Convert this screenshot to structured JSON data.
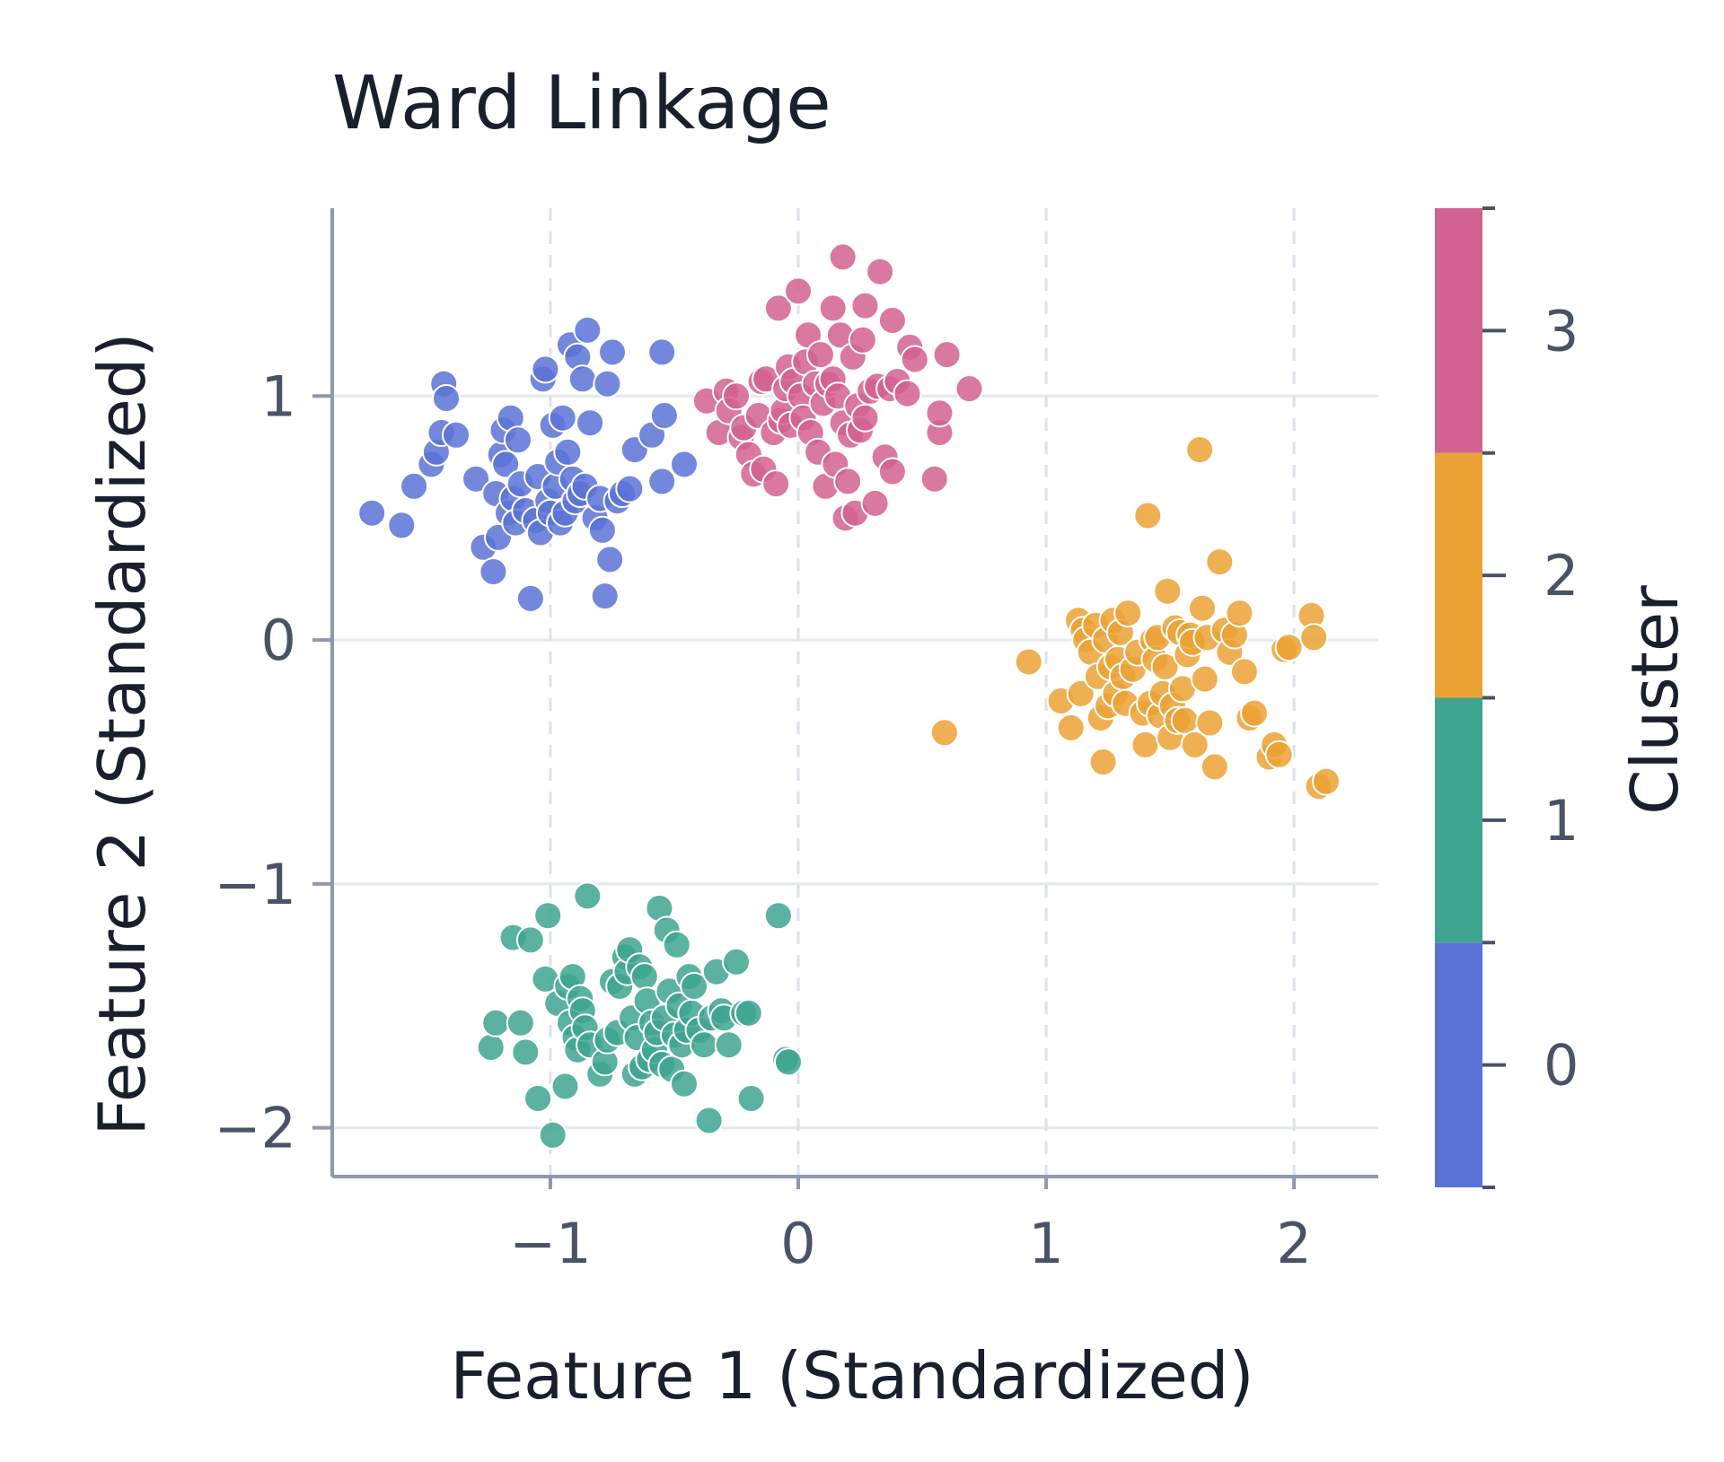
{
  "chart_data": {
    "type": "scatter",
    "title": "Ward Linkage",
    "xlabel": "Feature 1 (Standardized)",
    "ylabel": "Feature 2 (Standardized)",
    "xlim": [
      -1.88,
      2.34
    ],
    "ylim": [
      -2.2,
      1.77
    ],
    "x_ticks": [
      -1,
      0,
      1,
      2
    ],
    "x_tick_labels": [
      "−1",
      "0",
      "1",
      "2"
    ],
    "y_ticks": [
      1,
      0,
      -1,
      -2
    ],
    "y_tick_labels": [
      "1",
      "0",
      "−1",
      "−2"
    ],
    "grid": true,
    "colorbar": {
      "label": "Cluster",
      "range": [
        -0.5,
        3.5
      ],
      "ticks": [
        3,
        2,
        1,
        0
      ],
      "tick_labels": [
        "3",
        "2",
        "1",
        "0"
      ]
    },
    "series": [
      {
        "cluster": 0,
        "color": "#5b73d6",
        "points": [
          [
            -1.72,
            0.52
          ],
          [
            -1.6,
            0.47
          ],
          [
            -1.55,
            0.63
          ],
          [
            -1.48,
            0.72
          ],
          [
            -1.46,
            0.77
          ],
          [
            -1.44,
            0.85
          ],
          [
            -1.43,
            1.05
          ],
          [
            -1.42,
            0.99
          ],
          [
            -1.38,
            0.84
          ],
          [
            -1.3,
            0.66
          ],
          [
            -1.27,
            0.38
          ],
          [
            -1.23,
            0.28
          ],
          [
            -1.22,
            0.6
          ],
          [
            -1.21,
            0.42
          ],
          [
            -1.2,
            0.76
          ],
          [
            -1.19,
            0.86
          ],
          [
            -1.18,
            0.72
          ],
          [
            -1.17,
            0.52
          ],
          [
            -1.16,
            0.91
          ],
          [
            -1.15,
            0.58
          ],
          [
            -1.14,
            0.48
          ],
          [
            -1.13,
            0.82
          ],
          [
            -1.12,
            0.64
          ],
          [
            -1.1,
            0.53
          ],
          [
            -1.08,
            0.17
          ],
          [
            -1.06,
            0.49
          ],
          [
            -1.05,
            0.67
          ],
          [
            -1.04,
            0.44
          ],
          [
            -1.03,
            1.07
          ],
          [
            -1.02,
            1.11
          ],
          [
            -1.01,
            0.57
          ],
          [
            -1.0,
            0.52
          ],
          [
            -0.99,
            0.88
          ],
          [
            -0.98,
            0.63
          ],
          [
            -0.97,
            0.73
          ],
          [
            -0.96,
            0.48
          ],
          [
            -0.95,
            0.91
          ],
          [
            -0.94,
            0.52
          ],
          [
            -0.93,
            0.77
          ],
          [
            -0.92,
            1.21
          ],
          [
            -0.91,
            0.66
          ],
          [
            -0.9,
            0.57
          ],
          [
            -0.89,
            1.16
          ],
          [
            -0.88,
            0.6
          ],
          [
            -0.87,
            1.07
          ],
          [
            -0.86,
            0.63
          ],
          [
            -0.85,
            1.27
          ],
          [
            -0.84,
            0.89
          ],
          [
            -0.82,
            0.5
          ],
          [
            -0.8,
            0.58
          ],
          [
            -0.79,
            0.45
          ],
          [
            -0.78,
            0.18
          ],
          [
            -0.77,
            1.05
          ],
          [
            -0.76,
            0.33
          ],
          [
            -0.75,
            1.18
          ],
          [
            -0.73,
            0.57
          ],
          [
            -0.71,
            0.6
          ],
          [
            -0.68,
            0.62
          ],
          [
            -0.66,
            0.78
          ],
          [
            -0.59,
            0.84
          ],
          [
            -0.55,
            0.65
          ],
          [
            -0.55,
            1.18
          ],
          [
            -0.54,
            0.92
          ],
          [
            -0.46,
            0.72
          ]
        ]
      },
      {
        "cluster": 1,
        "color": "#3ea48f",
        "points": [
          [
            -1.24,
            -1.67
          ],
          [
            -1.22,
            -1.57
          ],
          [
            -1.15,
            -1.22
          ],
          [
            -1.12,
            -1.57
          ],
          [
            -1.1,
            -1.69
          ],
          [
            -1.08,
            -1.23
          ],
          [
            -1.05,
            -1.88
          ],
          [
            -1.02,
            -1.39
          ],
          [
            -1.01,
            -1.13
          ],
          [
            -0.99,
            -2.03
          ],
          [
            -0.97,
            -1.49
          ],
          [
            -0.94,
            -1.83
          ],
          [
            -0.93,
            -1.42
          ],
          [
            -0.92,
            -1.57
          ],
          [
            -0.91,
            -1.38
          ],
          [
            -0.9,
            -1.63
          ],
          [
            -0.89,
            -1.68
          ],
          [
            -0.88,
            -1.47
          ],
          [
            -0.87,
            -1.52
          ],
          [
            -0.86,
            -1.59
          ],
          [
            -0.85,
            -1.05
          ],
          [
            -0.84,
            -1.66
          ],
          [
            -0.8,
            -1.78
          ],
          [
            -0.78,
            -1.73
          ],
          [
            -0.77,
            -1.64
          ],
          [
            -0.75,
            -1.4
          ],
          [
            -0.73,
            -1.61
          ],
          [
            -0.72,
            -1.42
          ],
          [
            -0.7,
            -1.3
          ],
          [
            -0.69,
            -1.36
          ],
          [
            -0.68,
            -1.27
          ],
          [
            -0.67,
            -1.55
          ],
          [
            -0.66,
            -1.78
          ],
          [
            -0.65,
            -1.63
          ],
          [
            -0.64,
            -1.34
          ],
          [
            -0.63,
            -1.75
          ],
          [
            -0.62,
            -1.38
          ],
          [
            -0.61,
            -1.48
          ],
          [
            -0.6,
            -1.72
          ],
          [
            -0.59,
            -1.57
          ],
          [
            -0.58,
            -1.68
          ],
          [
            -0.57,
            -1.61
          ],
          [
            -0.56,
            -1.1
          ],
          [
            -0.55,
            -1.74
          ],
          [
            -0.54,
            -1.55
          ],
          [
            -0.53,
            -1.19
          ],
          [
            -0.52,
            -1.44
          ],
          [
            -0.51,
            -1.76
          ],
          [
            -0.5,
            -1.62
          ],
          [
            -0.49,
            -1.25
          ],
          [
            -0.48,
            -1.5
          ],
          [
            -0.47,
            -1.66
          ],
          [
            -0.46,
            -1.82
          ],
          [
            -0.45,
            -1.6
          ],
          [
            -0.44,
            -1.38
          ],
          [
            -0.43,
            -1.53
          ],
          [
            -0.42,
            -1.42
          ],
          [
            -0.4,
            -1.6
          ],
          [
            -0.38,
            -1.66
          ],
          [
            -0.36,
            -1.97
          ],
          [
            -0.35,
            -1.55
          ],
          [
            -0.33,
            -1.36
          ],
          [
            -0.31,
            -1.52
          ],
          [
            -0.3,
            -1.55
          ],
          [
            -0.28,
            -1.66
          ],
          [
            -0.25,
            -1.32
          ],
          [
            -0.22,
            -1.53
          ],
          [
            -0.2,
            -1.53
          ],
          [
            -0.19,
            -1.88
          ],
          [
            -0.08,
            -1.13
          ],
          [
            -0.05,
            -1.72
          ],
          [
            -0.04,
            -1.73
          ]
        ]
      },
      {
        "cluster": 2,
        "color": "#eba234",
        "points": [
          [
            0.59,
            -0.38
          ],
          [
            0.93,
            -0.09
          ],
          [
            1.06,
            -0.25
          ],
          [
            1.1,
            -0.36
          ],
          [
            1.13,
            0.08
          ],
          [
            1.14,
            -0.22
          ],
          [
            1.15,
            0.04
          ],
          [
            1.16,
            0.0
          ],
          [
            1.18,
            -0.05
          ],
          [
            1.2,
            0.06
          ],
          [
            1.21,
            -0.15
          ],
          [
            1.22,
            -0.32
          ],
          [
            1.23,
            -0.5
          ],
          [
            1.24,
            0.0
          ],
          [
            1.25,
            -0.27
          ],
          [
            1.26,
            -0.11
          ],
          [
            1.27,
            0.08
          ],
          [
            1.28,
            -0.22
          ],
          [
            1.29,
            -0.08
          ],
          [
            1.3,
            0.03
          ],
          [
            1.31,
            -0.15
          ],
          [
            1.32,
            -0.26
          ],
          [
            1.33,
            0.11
          ],
          [
            1.35,
            -0.12
          ],
          [
            1.37,
            -0.05
          ],
          [
            1.39,
            -0.3
          ],
          [
            1.4,
            -0.43
          ],
          [
            1.41,
            0.51
          ],
          [
            1.42,
            -0.26
          ],
          [
            1.43,
            0.0
          ],
          [
            1.44,
            -0.08
          ],
          [
            1.45,
            0.01
          ],
          [
            1.46,
            -0.31
          ],
          [
            1.47,
            -0.22
          ],
          [
            1.48,
            -0.11
          ],
          [
            1.49,
            0.2
          ],
          [
            1.5,
            -0.4
          ],
          [
            1.51,
            -0.27
          ],
          [
            1.52,
            0.05
          ],
          [
            1.53,
            -0.33
          ],
          [
            1.54,
            0.03
          ],
          [
            1.55,
            -0.2
          ],
          [
            1.56,
            -0.33
          ],
          [
            1.57,
            -0.06
          ],
          [
            1.58,
            0.02
          ],
          [
            1.59,
            -0.01
          ],
          [
            1.6,
            -0.43
          ],
          [
            1.62,
            0.78
          ],
          [
            1.63,
            0.13
          ],
          [
            1.64,
            -0.16
          ],
          [
            1.65,
            0.01
          ],
          [
            1.66,
            -0.34
          ],
          [
            1.68,
            -0.52
          ],
          [
            1.7,
            0.32
          ],
          [
            1.72,
            0.04
          ],
          [
            1.74,
            -0.05
          ],
          [
            1.76,
            0.02
          ],
          [
            1.78,
            0.11
          ],
          [
            1.8,
            -0.13
          ],
          [
            1.82,
            -0.32
          ],
          [
            1.84,
            -0.3
          ],
          [
            1.9,
            -0.48
          ],
          [
            1.92,
            -0.43
          ],
          [
            1.94,
            -0.47
          ],
          [
            1.96,
            -0.04
          ],
          [
            1.98,
            -0.03
          ],
          [
            2.07,
            0.1
          ],
          [
            2.08,
            0.01
          ],
          [
            2.1,
            -0.6
          ],
          [
            2.13,
            -0.58
          ]
        ]
      },
      {
        "cluster": 3,
        "color": "#d2628f",
        "points": [
          [
            -0.37,
            0.98
          ],
          [
            -0.32,
            0.85
          ],
          [
            -0.29,
            1.02
          ],
          [
            -0.28,
            0.94
          ],
          [
            -0.25,
            1.0
          ],
          [
            -0.23,
            0.83
          ],
          [
            -0.22,
            0.87
          ],
          [
            -0.2,
            0.76
          ],
          [
            -0.18,
            0.68
          ],
          [
            -0.16,
            0.92
          ],
          [
            -0.15,
            1.06
          ],
          [
            -0.14,
            0.7
          ],
          [
            -0.13,
            1.07
          ],
          [
            -0.1,
            0.85
          ],
          [
            -0.09,
            0.64
          ],
          [
            -0.08,
            1.36
          ],
          [
            -0.07,
            0.9
          ],
          [
            -0.06,
            0.94
          ],
          [
            -0.05,
            1.03
          ],
          [
            -0.04,
            1.12
          ],
          [
            -0.03,
            0.88
          ],
          [
            -0.02,
            1.06
          ],
          [
            0.0,
            1.43
          ],
          [
            0.01,
            1.0
          ],
          [
            0.02,
            0.91
          ],
          [
            0.03,
            1.14
          ],
          [
            0.04,
            1.25
          ],
          [
            0.05,
            0.85
          ],
          [
            0.07,
            1.05
          ],
          [
            0.08,
            0.77
          ],
          [
            0.09,
            1.17
          ],
          [
            0.1,
            0.97
          ],
          [
            0.11,
            0.63
          ],
          [
            0.12,
            1.05
          ],
          [
            0.14,
            1.07
          ],
          [
            0.14,
            1.36
          ],
          [
            0.15,
            0.72
          ],
          [
            0.16,
            1.0
          ],
          [
            0.17,
            1.25
          ],
          [
            0.18,
            1.57
          ],
          [
            0.18,
            0.89
          ],
          [
            0.19,
            0.5
          ],
          [
            0.2,
            0.65
          ],
          [
            0.21,
            0.84
          ],
          [
            0.22,
            1.16
          ],
          [
            0.23,
            0.52
          ],
          [
            0.24,
            0.96
          ],
          [
            0.25,
            0.86
          ],
          [
            0.26,
            1.23
          ],
          [
            0.27,
            0.91
          ],
          [
            0.27,
            1.37
          ],
          [
            0.29,
            1.02
          ],
          [
            0.31,
            0.56
          ],
          [
            0.32,
            1.04
          ],
          [
            0.33,
            1.51
          ],
          [
            0.35,
            0.75
          ],
          [
            0.37,
            1.03
          ],
          [
            0.38,
            1.31
          ],
          [
            0.38,
            0.69
          ],
          [
            0.4,
            1.06
          ],
          [
            0.44,
            1.01
          ],
          [
            0.45,
            1.2
          ],
          [
            0.47,
            1.15
          ],
          [
            0.55,
            0.66
          ],
          [
            0.57,
            0.85
          ],
          [
            0.57,
            0.93
          ],
          [
            0.6,
            1.17
          ],
          [
            0.69,
            1.03
          ]
        ]
      }
    ]
  }
}
